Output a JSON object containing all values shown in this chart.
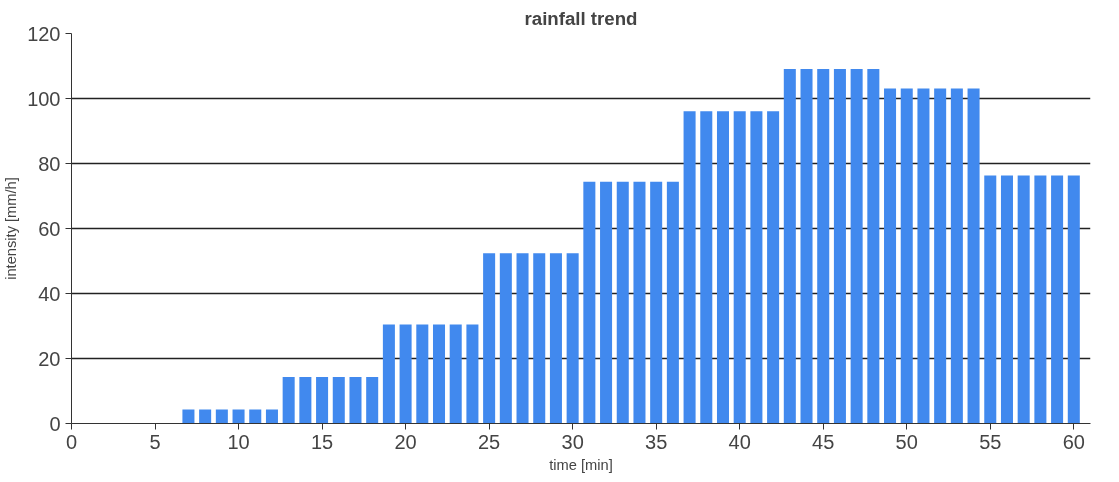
{
  "chart_data": {
    "type": "bar",
    "title": "rainfall trend",
    "xlabel": "time [min]",
    "ylabel": "intensity [mm/h]",
    "x": [
      7,
      8,
      9,
      10,
      11,
      12,
      13,
      14,
      15,
      16,
      17,
      18,
      19,
      20,
      21,
      22,
      23,
      24,
      25,
      26,
      27,
      28,
      29,
      30,
      31,
      32,
      33,
      34,
      35,
      36,
      37,
      38,
      39,
      40,
      41,
      42,
      43,
      44,
      45,
      46,
      47,
      48,
      49,
      50,
      51,
      52,
      53,
      54,
      55,
      56,
      57,
      58,
      59,
      60
    ],
    "series": [
      {
        "color": "#4189ee",
        "values": [
          4.3,
          4.3,
          4.3,
          4.3,
          4.3,
          4.3,
          14.3,
          14.3,
          14.3,
          14.3,
          14.3,
          14.3,
          30.5,
          30.5,
          30.5,
          30.5,
          30.5,
          30.5,
          52.4,
          52.4,
          52.4,
          52.4,
          52.4,
          52.4,
          74.4,
          74.4,
          74.4,
          74.4,
          74.4,
          74.4,
          96.1,
          96.1,
          96.1,
          96.1,
          96.1,
          96.1,
          109.1,
          109.1,
          109.1,
          109.1,
          109.1,
          109.1,
          103.1,
          103.1,
          103.1,
          103.1,
          103.1,
          103.1,
          76.3,
          76.3,
          76.3,
          76.3,
          76.3,
          76.3
        ]
      }
    ],
    "xlim": [
      0,
      61
    ],
    "xticks": [
      0,
      5,
      10,
      15,
      20,
      25,
      30,
      35,
      40,
      45,
      50,
      55,
      60
    ],
    "ylim": [
      0,
      120
    ],
    "yticks": [
      0,
      20,
      40,
      60,
      80,
      100,
      120
    ],
    "grid": "y"
  }
}
